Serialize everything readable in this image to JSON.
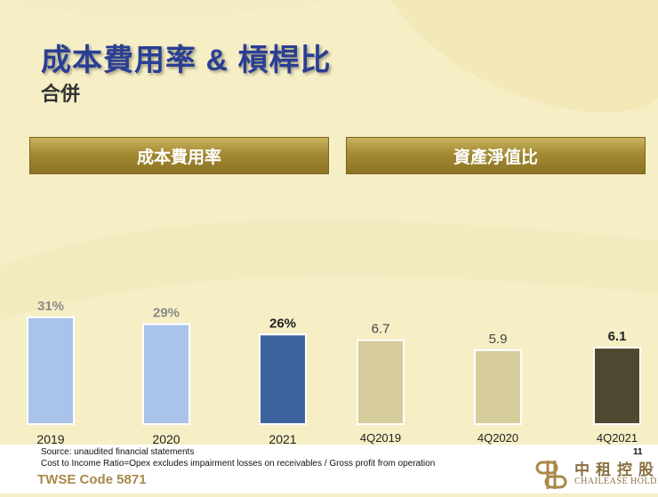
{
  "header": {
    "title": "成本費用率 & 槓桿比",
    "subtitle": "合併"
  },
  "banners": {
    "left": "成本費用率",
    "right": "資產淨值比"
  },
  "chart_data": [
    {
      "type": "bar",
      "title": "成本費用率",
      "categories": [
        "2019",
        "2020",
        "2021"
      ],
      "values": [
        31,
        29,
        26
      ],
      "value_labels": [
        "31%",
        "29%",
        "26%"
      ],
      "colors": [
        "#a9c3ea",
        "#a9c3ea",
        "#3e649f"
      ],
      "label_colors": [
        "#8a8a8a",
        "#8a8a8a",
        "#222222"
      ],
      "ylim": [
        0,
        40
      ]
    },
    {
      "type": "bar",
      "title": "資產淨值比",
      "categories": [
        "4Q2019",
        "4Q2020",
        "4Q2021"
      ],
      "values": [
        6.7,
        5.9,
        6.1
      ],
      "value_labels": [
        "6.7",
        "5.9",
        "6.1"
      ],
      "colors": [
        "#d6cc9c",
        "#d6cc9c",
        "#4f4830"
      ],
      "label_colors": [
        "#444444",
        "#444444",
        "#222222"
      ],
      "ylim": [
        0,
        11
      ]
    }
  ],
  "footer": {
    "source": "Source: unaudited financial statements",
    "note": "Cost to Income Ratio=Opex excludes impairment losses on receivables / Gross profit from operation",
    "page": "11",
    "ticker": "TWSE Code 5871",
    "logo_cn": "中租控股",
    "logo_en": "CHAILEASE HOLDING"
  }
}
